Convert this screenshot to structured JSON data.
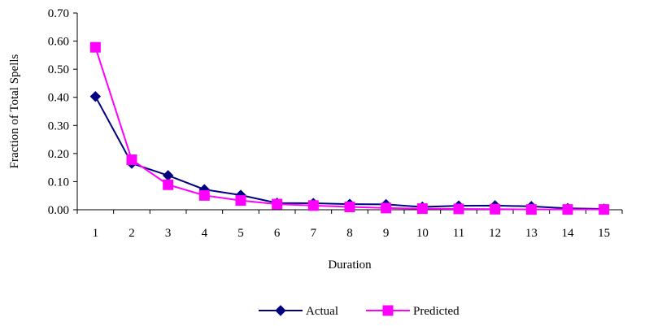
{
  "chart_data": {
    "type": "line",
    "title": "",
    "xlabel": "Duration",
    "ylabel": "Fraction of Total Spells",
    "x": [
      1,
      2,
      3,
      4,
      5,
      6,
      7,
      8,
      9,
      10,
      11,
      12,
      13,
      14,
      15
    ],
    "x_tick_labels": [
      "1",
      "2",
      "3",
      "4",
      "5",
      "6",
      "7",
      "8",
      "9",
      "10",
      "11",
      "12",
      "13",
      "14",
      "15"
    ],
    "ylim": [
      0,
      0.7
    ],
    "y_ticks": [
      0,
      0.1,
      0.2,
      0.3,
      0.4,
      0.5,
      0.6,
      0.7
    ],
    "y_tick_labels": [
      "0.00",
      "0.10",
      "0.20",
      "0.30",
      "0.40",
      "0.50",
      "0.60",
      "0.70"
    ],
    "grid": false,
    "legend_position": "bottom",
    "series": [
      {
        "name": "Actual",
        "color": "#000080",
        "marker": "diamond",
        "values": [
          0.403,
          0.165,
          0.122,
          0.072,
          0.052,
          0.024,
          0.023,
          0.02,
          0.019,
          0.01,
          0.014,
          0.015,
          0.012,
          0.005,
          0.003
        ]
      },
      {
        "name": "Predicted",
        "color": "#FF00FF",
        "marker": "square",
        "values": [
          0.578,
          0.178,
          0.089,
          0.051,
          0.033,
          0.02,
          0.015,
          0.01,
          0.006,
          0.004,
          0.003,
          0.002,
          0.001,
          0.001,
          0.001
        ]
      }
    ]
  }
}
